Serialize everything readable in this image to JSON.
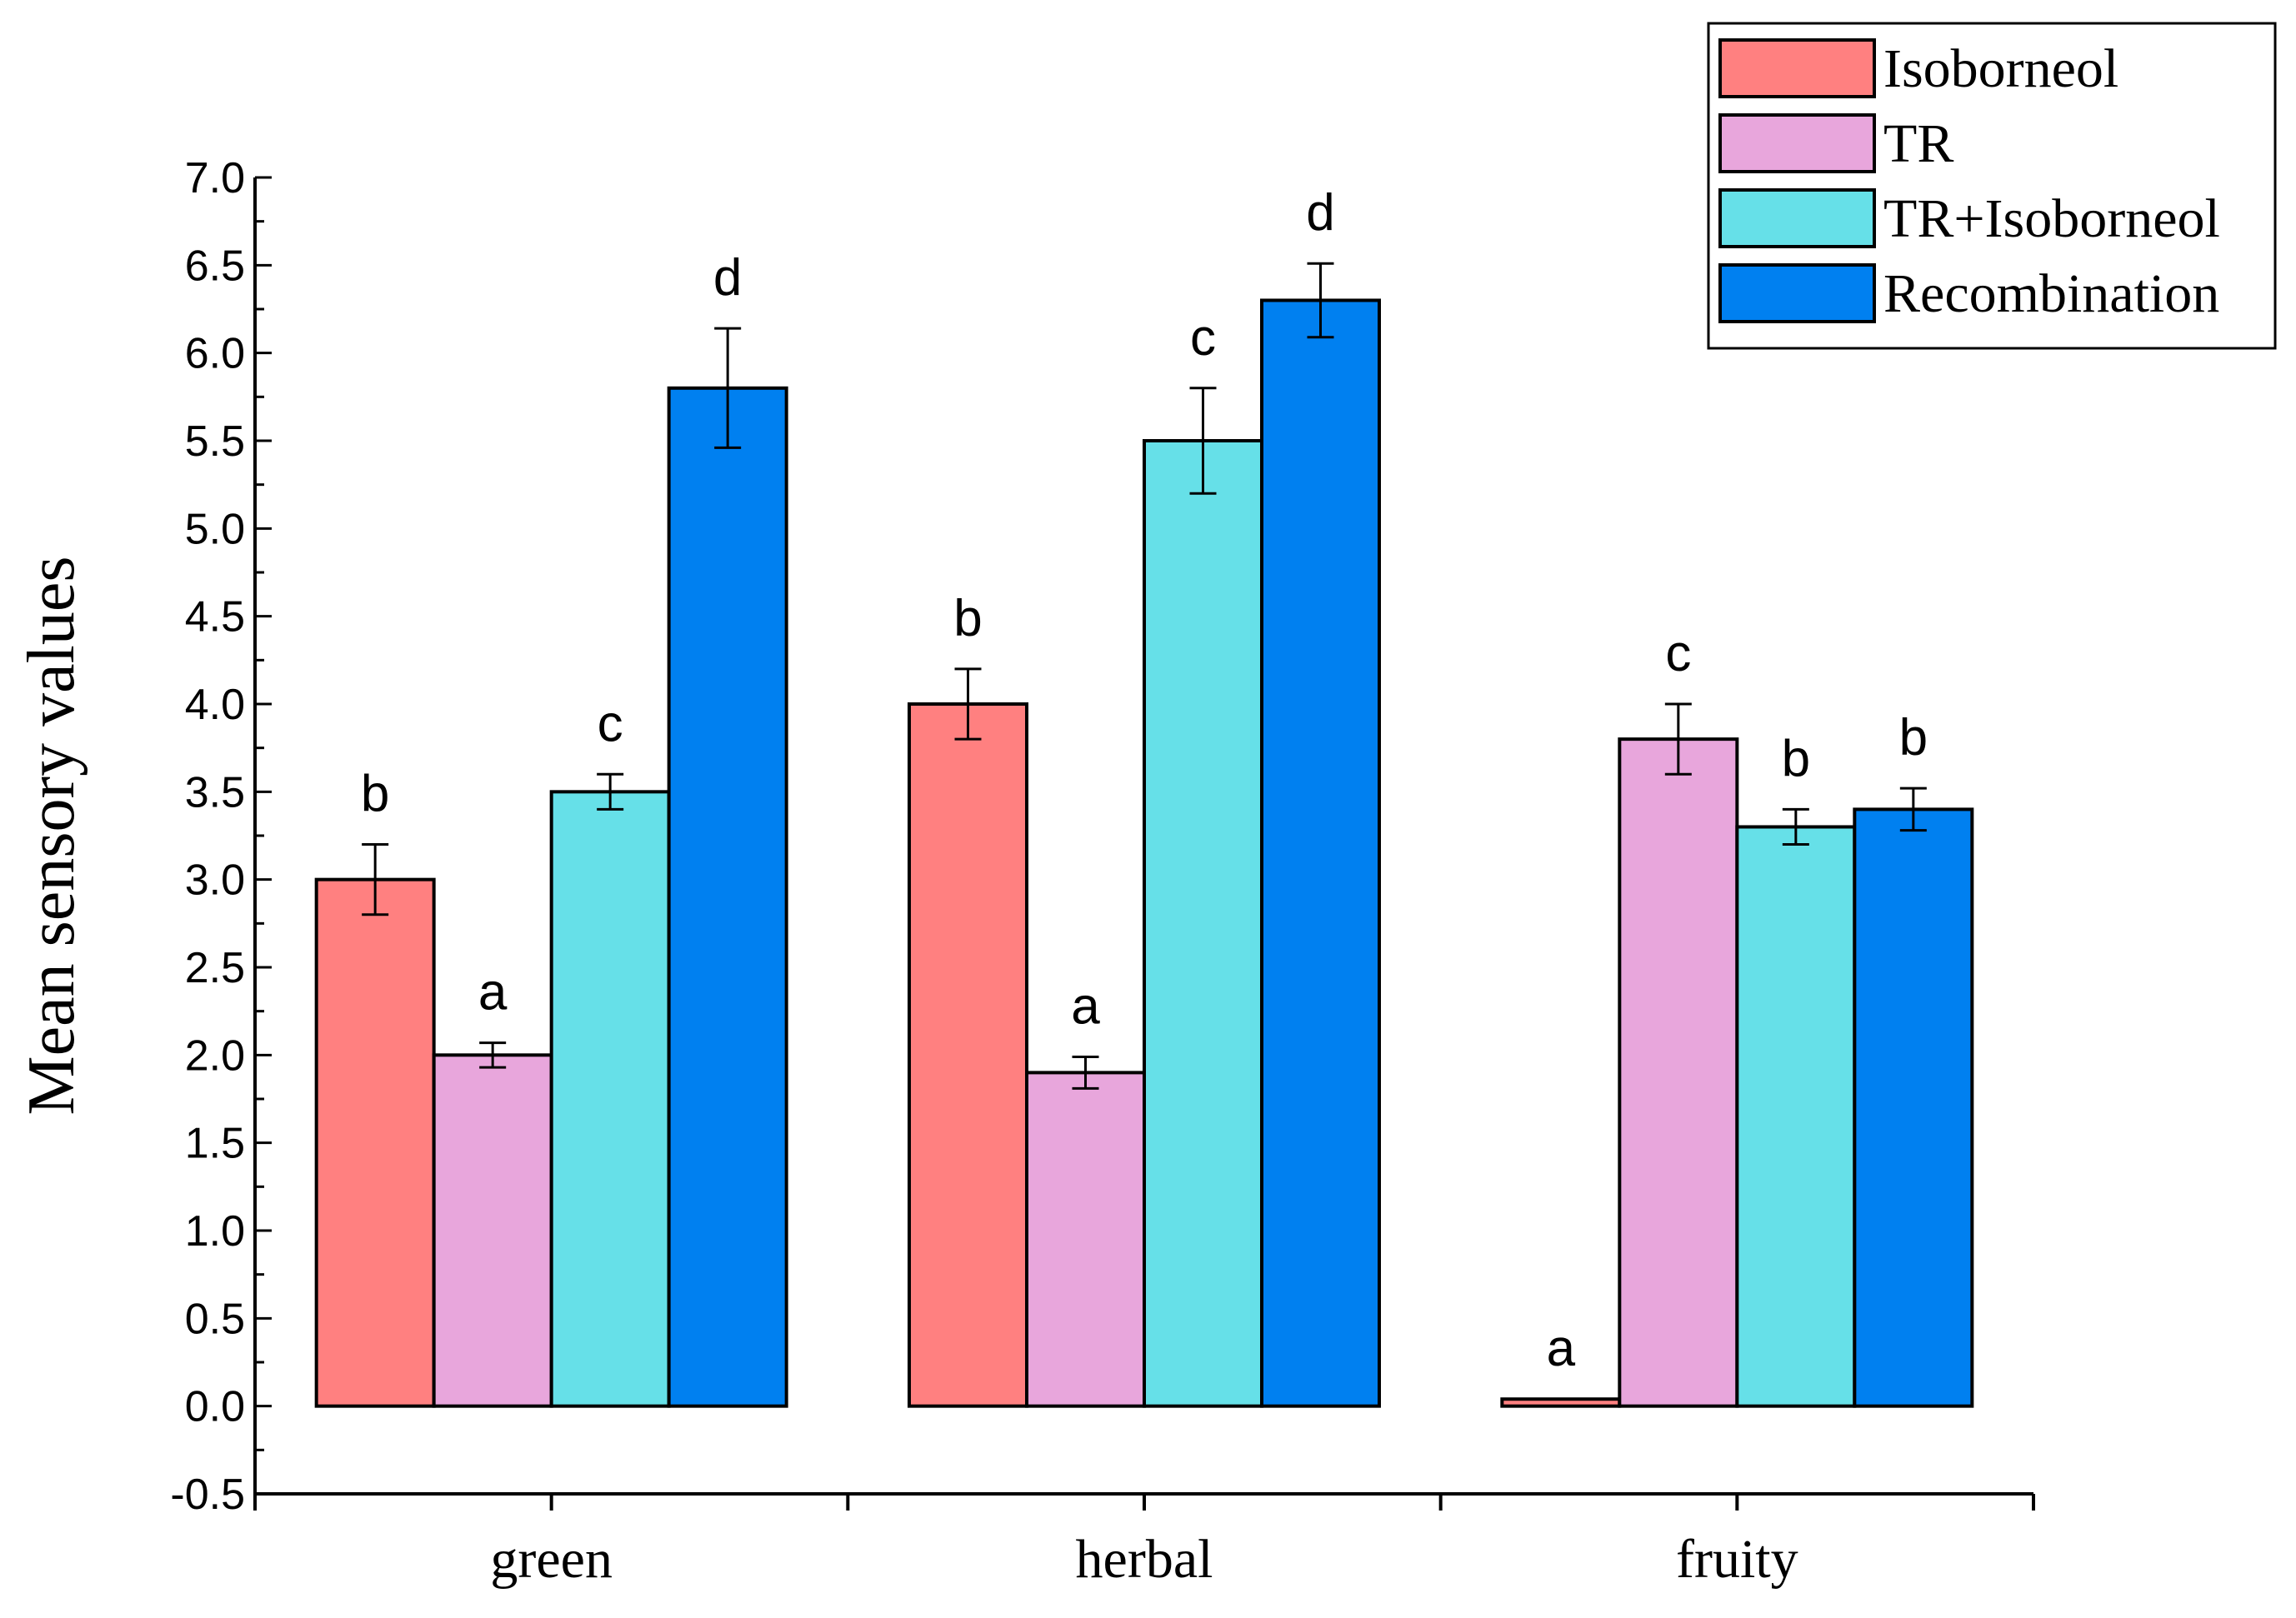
{
  "chart_data": {
    "type": "bar",
    "title": "",
    "xlabel": "",
    "ylabel": "Mean sensory values",
    "ylim": [
      -0.5,
      7.0
    ],
    "yticks": [
      "7.0",
      "6.5",
      "6.0",
      "5.5",
      "5.0",
      "4.5",
      "4.0",
      "3.5",
      "3.0",
      "2.5",
      "2.0",
      "1.5",
      "1.0",
      "0.5",
      "0.0",
      "-0.5"
    ],
    "categories": [
      "green",
      "herbal",
      "fruity"
    ],
    "legend_position": "top-right",
    "series": [
      {
        "name": "Isoborneol",
        "color": "#FF8080",
        "values": [
          3.0,
          4.0,
          0.04
        ],
        "errors": [
          0.2,
          0.2,
          0.0
        ],
        "letters": [
          "b",
          "b",
          "a"
        ]
      },
      {
        "name": "TR",
        "color": "#E8A6DC",
        "values": [
          2.0,
          1.9,
          3.8
        ],
        "errors": [
          0.07,
          0.09,
          0.2
        ],
        "letters": [
          "a",
          "a",
          "c"
        ]
      },
      {
        "name": "TR+Isoborneol",
        "color": "#66E0E8",
        "values": [
          3.5,
          5.5,
          3.3
        ],
        "errors": [
          0.1,
          0.3,
          0.1
        ],
        "letters": [
          "c",
          "c",
          "b"
        ]
      },
      {
        "name": "Recombination",
        "color": "#0080F0",
        "values": [
          5.8,
          6.3,
          3.4
        ],
        "errors": [
          0.34,
          0.21,
          0.12
        ],
        "letters": [
          "d",
          "d",
          "b"
        ]
      }
    ]
  }
}
